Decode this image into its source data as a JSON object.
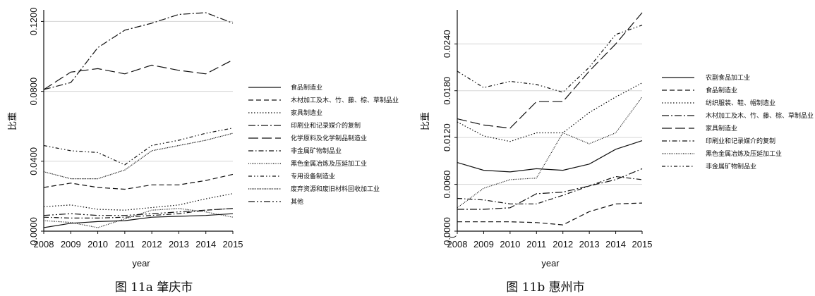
{
  "chart_data": [
    {
      "type": "line",
      "caption": "图 11a 肇庆市",
      "ylabel": "比重",
      "xlabel": "year",
      "x": [
        2008,
        2009,
        2010,
        2011,
        2012,
        2013,
        2014,
        2015
      ],
      "ylim": [
        0,
        0.125
      ],
      "yticks": [
        "0.0000",
        "0.0400",
        "0.0800",
        "0.1200"
      ],
      "grid": true,
      "legend_position": "right",
      "series": [
        {
          "name": "食品制造业",
          "style": "solid",
          "values": [
            0.002,
            0.0045,
            0.0055,
            0.006,
            0.008,
            0.0085,
            0.009,
            0.01
          ]
        },
        {
          "name": "木材加工及木、竹、藤、棕、草制品业",
          "style": "dashed",
          "values": [
            0.025,
            0.0275,
            0.025,
            0.024,
            0.0265,
            0.0265,
            0.029,
            0.0325
          ]
        },
        {
          "name": "家具制造业",
          "style": "dotted",
          "values": [
            0.014,
            0.015,
            0.0125,
            0.012,
            0.0135,
            0.015,
            0.0185,
            0.0215
          ]
        },
        {
          "name": "印刷业和记录媒介的复制",
          "style": "dashdot",
          "values": [
            0.081,
            0.085,
            0.105,
            0.115,
            0.119,
            0.124,
            0.125,
            0.119
          ]
        },
        {
          "name": "化学原料及化学制品制造业",
          "style": "longdash",
          "values": [
            0.081,
            0.091,
            0.093,
            0.09,
            0.095,
            0.092,
            0.09,
            0.098
          ]
        },
        {
          "name": "非金属矿物制品业",
          "style": "dashdot2",
          "values": [
            0.008,
            0.0075,
            0.0075,
            0.008,
            0.009,
            0.01,
            0.012,
            0.013
          ]
        },
        {
          "name": "黑色金属冶炼及压延加工业",
          "style": "fine",
          "values": [
            0.006,
            0.005,
            0.002,
            0.007,
            0.012,
            0.013,
            0.011,
            0.008
          ]
        },
        {
          "name": "专用设备制造业",
          "style": "dashdotdot",
          "values": [
            0.049,
            0.046,
            0.045,
            0.038,
            0.049,
            0.052,
            0.056,
            0.059
          ]
        },
        {
          "name": "废弃资源和废旧材料回收加工业",
          "style": "dotfine",
          "values": [
            0.034,
            0.03,
            0.03,
            0.035,
            0.046,
            0.049,
            0.052,
            0.056
          ]
        },
        {
          "name": "其他",
          "style": "dashdot3",
          "values": [
            0.009,
            0.01,
            0.009,
            0.009,
            0.01,
            0.011,
            0.012,
            0.013
          ]
        }
      ]
    },
    {
      "type": "line",
      "caption": "图 11b 惠州市",
      "ylabel": "比重",
      "xlabel": "year",
      "x": [
        2008,
        2009,
        2010,
        2011,
        2012,
        2013,
        2014,
        2015
      ],
      "ylim": [
        0,
        0.028
      ],
      "yticks": [
        "0.0000",
        "0.0060",
        "0.0120",
        "0.0180",
        "0.0240"
      ],
      "grid": true,
      "legend_position": "right",
      "stray_label": "(",
      "series": [
        {
          "name": "农副食品加工业",
          "style": "solid",
          "values": [
            0.0088,
            0.0078,
            0.0076,
            0.008,
            0.0078,
            0.0086,
            0.0105,
            0.0116
          ]
        },
        {
          "name": "食品制造业",
          "style": "dashed",
          "values": [
            0.0012,
            0.0012,
            0.0012,
            0.0011,
            0.0008,
            0.0025,
            0.0035,
            0.0036
          ]
        },
        {
          "name": "纺织服装、鞋、帽制造业",
          "style": "dotted",
          "values": [
            0.014,
            0.0122,
            0.0115,
            0.0126,
            0.0126,
            0.0152,
            0.0172,
            0.019
          ]
        },
        {
          "name": "木材加工及木、竹、藤、棕、草制品业",
          "style": "dashdot",
          "values": [
            0.0028,
            0.0028,
            0.003,
            0.0048,
            0.005,
            0.0058,
            0.0066,
            0.008
          ]
        },
        {
          "name": "家具制造业",
          "style": "longdash",
          "values": [
            0.0144,
            0.0136,
            0.0132,
            0.0166,
            0.0166,
            0.0205,
            0.024,
            0.028
          ]
        },
        {
          "name": "印刷业和记录媒介的复制",
          "style": "dashdot2",
          "values": [
            0.0042,
            0.004,
            0.0035,
            0.0035,
            0.0046,
            0.0058,
            0.007,
            0.0066
          ]
        },
        {
          "name": "黑色金属冶炼及压延加工业",
          "style": "fine",
          "values": [
            0.003,
            0.0055,
            0.0066,
            0.0068,
            0.0126,
            0.0112,
            0.0126,
            0.0172
          ]
        },
        {
          "name": "非金属矿物制品业",
          "style": "dashdotdot",
          "values": [
            0.0205,
            0.0184,
            0.0192,
            0.0188,
            0.0178,
            0.021,
            0.0252,
            0.0264
          ]
        }
      ]
    }
  ]
}
